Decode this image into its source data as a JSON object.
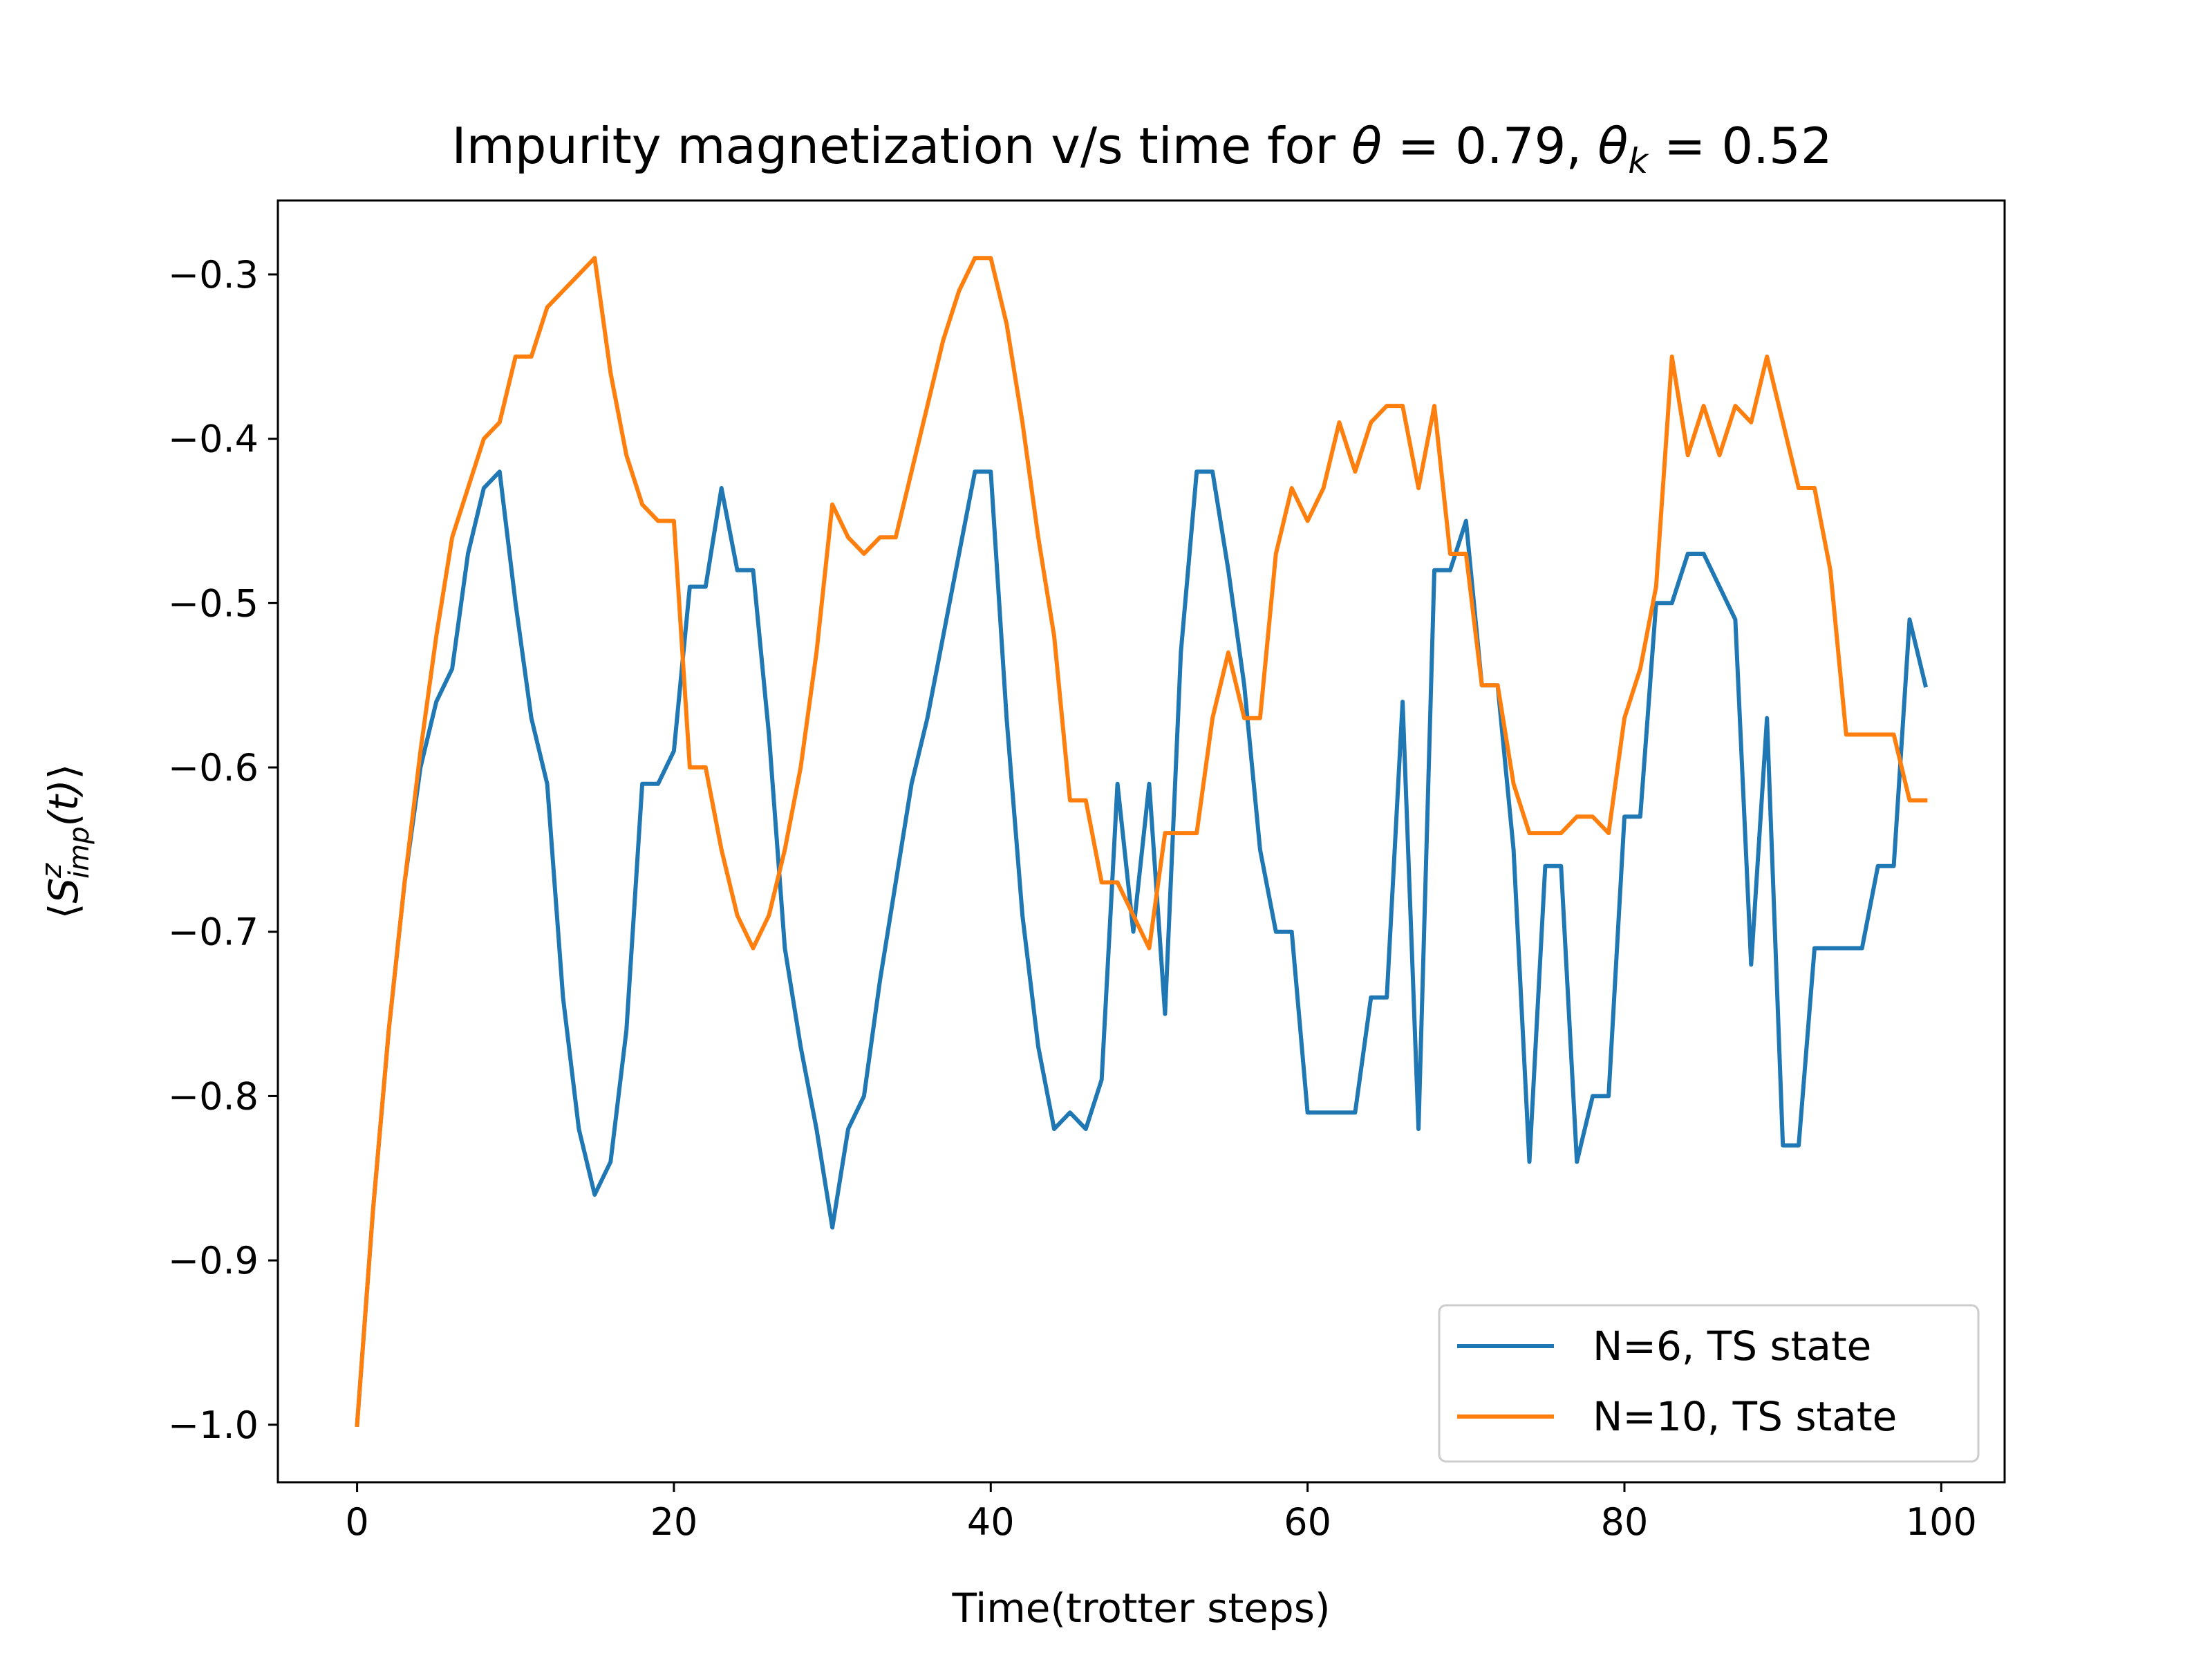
{
  "chart_data": {
    "type": "line",
    "title": "Impurity magnetization v/s time for θ = 0.79,  θ_k = 0.52",
    "title_parts": {
      "prefix": "Impurity magnetization v/s time for ",
      "theta_symbol": "θ",
      "theta_eq": " = 0.79,  ",
      "thetak_symbol": "θ",
      "thetak_sub": "k",
      "thetak_eq": " = 0.52"
    },
    "xlabel": "Time(trotter steps)",
    "ylabel": "⟨S^z_imp(t)⟩",
    "ylabel_parts": {
      "open": "⟨",
      "S": "S",
      "sup": "z",
      "sub": "imp",
      "rest": "(t)",
      "close": "⟩"
    },
    "xlim": [
      -5,
      104
    ],
    "ylim": [
      -1.035,
      -0.255
    ],
    "x_ticks": [
      0,
      20,
      40,
      60,
      80,
      100
    ],
    "x_tick_labels": [
      "0",
      "20",
      "40",
      "60",
      "80",
      "100"
    ],
    "y_ticks": [
      -1.0,
      -0.9,
      -0.8,
      -0.7,
      -0.6,
      -0.5,
      -0.4,
      -0.3
    ],
    "y_tick_labels": [
      "−1.0",
      "−0.9",
      "−0.8",
      "−0.7",
      "−0.6",
      "−0.5",
      "−0.4",
      "−0.3"
    ],
    "grid": false,
    "legend_position": "lower-right",
    "x": [
      0,
      1,
      2,
      3,
      4,
      5,
      6,
      7,
      8,
      9,
      10,
      11,
      12,
      13,
      14,
      15,
      16,
      17,
      18,
      19,
      20,
      21,
      22,
      23,
      24,
      25,
      26,
      27,
      28,
      29,
      30,
      31,
      32,
      33,
      34,
      35,
      36,
      37,
      38,
      39,
      40,
      41,
      42,
      43,
      44,
      45,
      46,
      47,
      48,
      49,
      50,
      51,
      52,
      53,
      54,
      55,
      56,
      57,
      58,
      59,
      60,
      61,
      62,
      63,
      64,
      65,
      66,
      67,
      68,
      69,
      70,
      71,
      72,
      73,
      74,
      75,
      76,
      77,
      78,
      79,
      80,
      81,
      82,
      83,
      84,
      85,
      86,
      87,
      88,
      89,
      90,
      91,
      92,
      93,
      94,
      95,
      96,
      97,
      98,
      99
    ],
    "series": [
      {
        "name": "N=6, TS state",
        "color": "#1f77b4",
        "values": [
          -1.0,
          -0.87,
          -0.76,
          -0.67,
          -0.6,
          -0.56,
          -0.54,
          -0.47,
          -0.43,
          -0.42,
          -0.5,
          -0.57,
          -0.61,
          -0.74,
          -0.82,
          -0.86,
          -0.84,
          -0.76,
          -0.61,
          -0.61,
          -0.59,
          -0.49,
          -0.49,
          -0.43,
          -0.48,
          -0.48,
          -0.58,
          -0.71,
          -0.77,
          -0.82,
          -0.88,
          -0.82,
          -0.8,
          -0.73,
          -0.67,
          -0.61,
          -0.57,
          -0.52,
          -0.47,
          -0.42,
          -0.42,
          -0.57,
          -0.69,
          -0.77,
          -0.82,
          -0.81,
          -0.82,
          -0.79,
          -0.61,
          -0.7,
          -0.61,
          -0.75,
          -0.53,
          -0.42,
          -0.42,
          -0.48,
          -0.55,
          -0.65,
          -0.7,
          -0.7,
          -0.81,
          -0.81,
          -0.81,
          -0.81,
          -0.74,
          -0.74,
          -0.56,
          -0.82,
          -0.48,
          -0.48,
          -0.45,
          -0.55,
          -0.55,
          -0.65,
          -0.84,
          -0.66,
          -0.66,
          -0.84,
          -0.8,
          -0.8,
          -0.63,
          -0.63,
          -0.5,
          -0.5,
          -0.47,
          -0.47,
          -0.49,
          -0.51,
          -0.72,
          -0.57,
          -0.83,
          -0.83,
          -0.71,
          -0.71,
          -0.71,
          -0.71,
          -0.66,
          -0.66,
          -0.51,
          -0.55
        ]
      },
      {
        "name": "N=10, TS state",
        "color": "#ff7f0e",
        "values": [
          -1.0,
          -0.87,
          -0.76,
          -0.67,
          -0.59,
          -0.52,
          -0.46,
          -0.43,
          -0.4,
          -0.39,
          -0.35,
          -0.35,
          -0.32,
          -0.31,
          -0.3,
          -0.29,
          -0.36,
          -0.41,
          -0.44,
          -0.45,
          -0.45,
          -0.6,
          -0.6,
          -0.65,
          -0.69,
          -0.71,
          -0.69,
          -0.65,
          -0.6,
          -0.53,
          -0.44,
          -0.46,
          -0.47,
          -0.46,
          -0.46,
          -0.42,
          -0.38,
          -0.34,
          -0.31,
          -0.29,
          -0.29,
          -0.33,
          -0.39,
          -0.46,
          -0.52,
          -0.62,
          -0.62,
          -0.67,
          -0.67,
          -0.69,
          -0.71,
          -0.64,
          -0.64,
          -0.64,
          -0.57,
          -0.53,
          -0.57,
          -0.57,
          -0.47,
          -0.43,
          -0.45,
          -0.43,
          -0.39,
          -0.42,
          -0.39,
          -0.38,
          -0.38,
          -0.43,
          -0.38,
          -0.47,
          -0.47,
          -0.55,
          -0.55,
          -0.61,
          -0.64,
          -0.64,
          -0.64,
          -0.63,
          -0.63,
          -0.64,
          -0.57,
          -0.54,
          -0.49,
          -0.35,
          -0.41,
          -0.38,
          -0.41,
          -0.38,
          -0.39,
          -0.35,
          -0.39,
          -0.43,
          -0.43,
          -0.48,
          -0.58,
          -0.58,
          -0.58,
          -0.58,
          -0.62,
          -0.62
        ]
      }
    ]
  }
}
